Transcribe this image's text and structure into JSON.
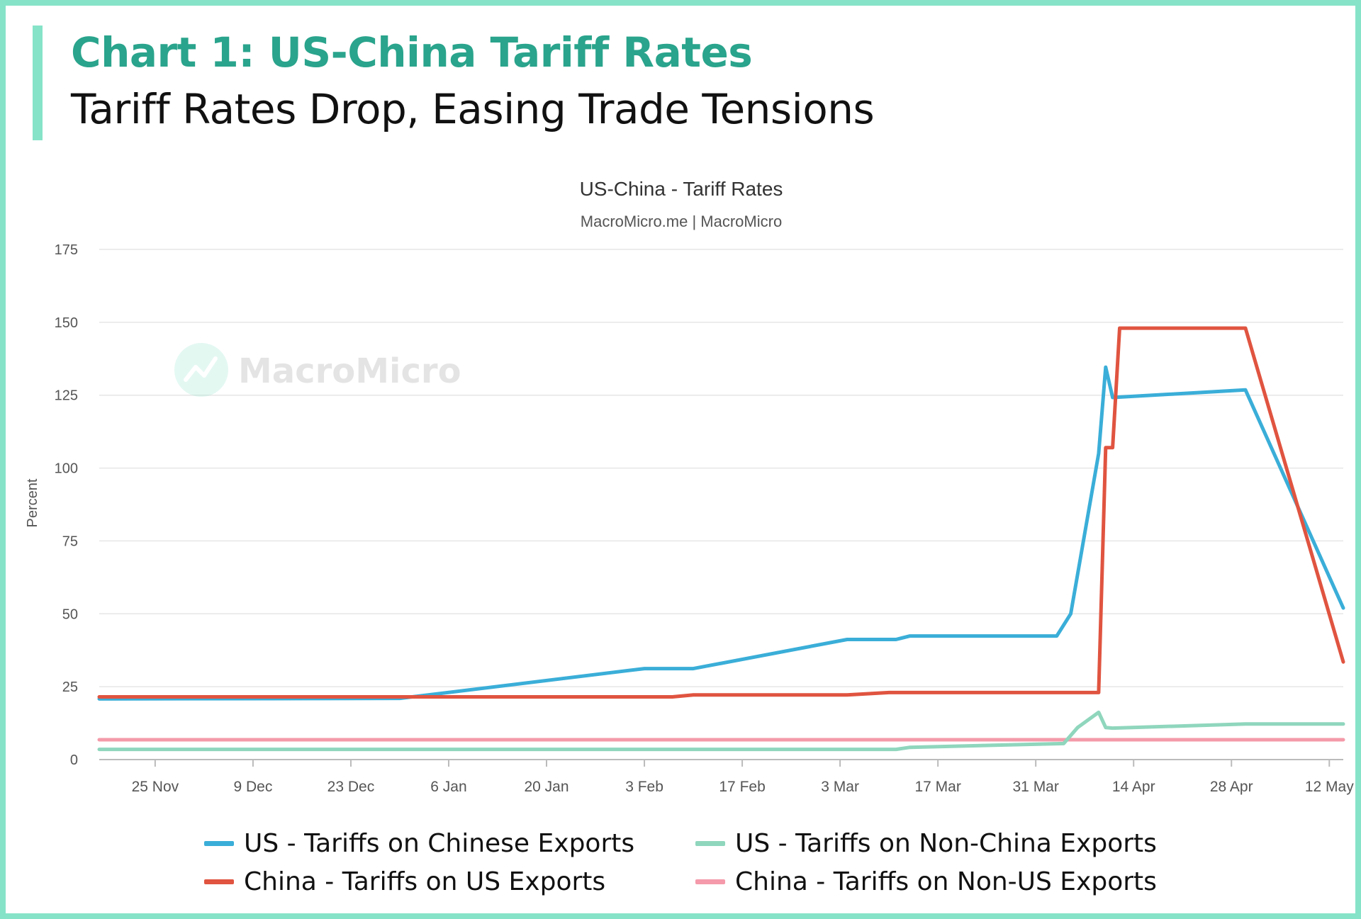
{
  "header": {
    "title": "Chart 1: US-China Tariff Rates",
    "subtitle": "Tariff Rates Drop, Easing Trade Tensions"
  },
  "watermark": {
    "text": "MacroMicro",
    "icon": "macromicro-logo-icon"
  },
  "colors": {
    "accent": "#86e3c8",
    "title": "#2aa48c",
    "us_chinese": "#3aaed8",
    "china_us": "#e05440",
    "us_nonchina": "#8fd6bd",
    "china_nonus": "#f49aaa"
  },
  "chart_data": {
    "type": "line",
    "title": "US-China - Tariff Rates",
    "subtitle": "MacroMicro.me | MacroMicro",
    "ylabel": "Percent",
    "ylim": [
      0,
      175
    ],
    "yticks": [
      0,
      25,
      50,
      75,
      100,
      125,
      150,
      175
    ],
    "xlim": [
      "2024-11-17",
      "2025-05-14"
    ],
    "xticks": [
      {
        "date": "2024-11-25",
        "label": "25 Nov"
      },
      {
        "date": "2024-12-09",
        "label": "9 Dec"
      },
      {
        "date": "2024-12-23",
        "label": "23 Dec"
      },
      {
        "date": "2025-01-06",
        "label": "6 Jan"
      },
      {
        "date": "2025-01-20",
        "label": "20 Jan"
      },
      {
        "date": "2025-02-03",
        "label": "3 Feb"
      },
      {
        "date": "2025-02-17",
        "label": "17 Feb"
      },
      {
        "date": "2025-03-03",
        "label": "3 Mar"
      },
      {
        "date": "2025-03-17",
        "label": "17 Mar"
      },
      {
        "date": "2025-03-31",
        "label": "31 Mar"
      },
      {
        "date": "2025-04-14",
        "label": "14 Apr"
      },
      {
        "date": "2025-04-28",
        "label": "28 Apr"
      },
      {
        "date": "2025-05-12",
        "label": "12 May"
      }
    ],
    "grid": true,
    "legend_position": "bottom",
    "series": [
      {
        "name": "US - Tariffs on Chinese Exports",
        "color": "#3aaed8",
        "points": [
          [
            "2024-11-17",
            20.8
          ],
          [
            "2024-12-30",
            21.0
          ],
          [
            "2025-02-03",
            31.2
          ],
          [
            "2025-02-10",
            31.2
          ],
          [
            "2025-03-04",
            41.2
          ],
          [
            "2025-03-11",
            41.2
          ],
          [
            "2025-03-13",
            42.4
          ],
          [
            "2025-04-03",
            42.4
          ],
          [
            "2025-04-05",
            50.0
          ],
          [
            "2025-04-09",
            105.0
          ],
          [
            "2025-04-10",
            134.6
          ],
          [
            "2025-04-11",
            124.2
          ],
          [
            "2025-04-30",
            126.8
          ],
          [
            "2025-05-14",
            52.0
          ]
        ]
      },
      {
        "name": "US - Tariffs on Non-China Exports",
        "color": "#8fd6bd",
        "points": [
          [
            "2024-11-17",
            3.5
          ],
          [
            "2025-03-11",
            3.5
          ],
          [
            "2025-03-13",
            4.2
          ],
          [
            "2025-04-04",
            5.5
          ],
          [
            "2025-04-06",
            11.0
          ],
          [
            "2025-04-09",
            16.2
          ],
          [
            "2025-04-10",
            11.0
          ],
          [
            "2025-04-11",
            10.8
          ],
          [
            "2025-04-30",
            12.2
          ],
          [
            "2025-05-14",
            12.2
          ]
        ]
      },
      {
        "name": "China - Tariffs on US Exports",
        "color": "#e05440",
        "points": [
          [
            "2024-11-17",
            21.5
          ],
          [
            "2025-02-07",
            21.5
          ],
          [
            "2025-02-10",
            22.2
          ],
          [
            "2025-03-04",
            22.2
          ],
          [
            "2025-03-10",
            23.0
          ],
          [
            "2025-04-09",
            23.0
          ],
          [
            "2025-04-10",
            107.0
          ],
          [
            "2025-04-11",
            107.0
          ],
          [
            "2025-04-12",
            148.0
          ],
          [
            "2025-04-30",
            148.0
          ],
          [
            "2025-05-14",
            33.5
          ]
        ]
      },
      {
        "name": "China - Tariffs on Non-US Exports",
        "color": "#f49aaa",
        "points": [
          [
            "2024-11-17",
            6.8
          ],
          [
            "2025-05-14",
            6.8
          ]
        ]
      }
    ]
  },
  "legend": {
    "items": [
      {
        "label": "US - Tariffs on Chinese Exports",
        "color": "#3aaed8"
      },
      {
        "label": "US - Tariffs on Non-China Exports",
        "color": "#8fd6bd"
      },
      {
        "label": "China - Tariffs on US Exports",
        "color": "#e05440"
      },
      {
        "label": "China - Tariffs on Non-US Exports",
        "color": "#f49aaa"
      }
    ]
  }
}
